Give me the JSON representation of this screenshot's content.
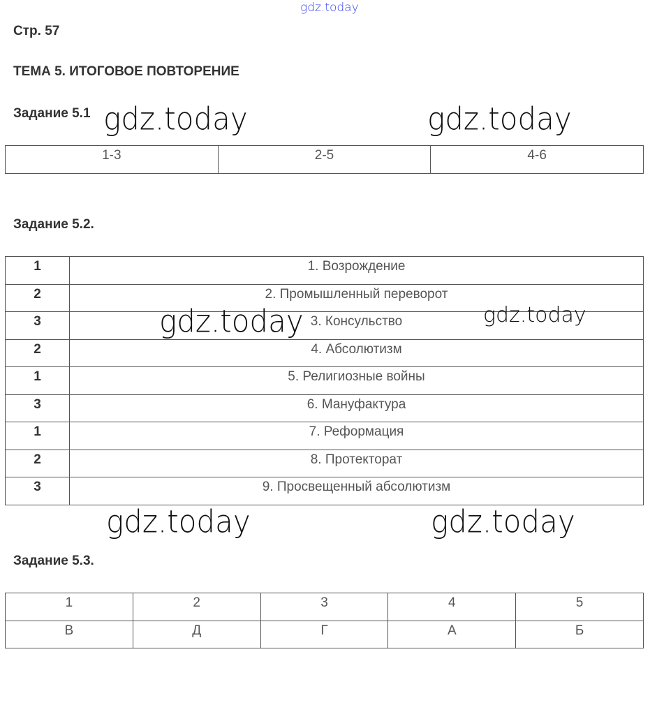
{
  "watermark": "gdz.today",
  "page_label": "Стр. 57",
  "topic_title": "ТЕМА 5. ИТОГОВОЕ ПОВТОРЕНИЕ",
  "task1": {
    "title": "Задание 5.1",
    "cells": [
      "1-3",
      "2-5",
      "4-6"
    ]
  },
  "task2": {
    "title": "Задание 5.2.",
    "rows": [
      {
        "num": "1",
        "text": "1. Возрождение"
      },
      {
        "num": "2",
        "text": "2. Промышленный переворот"
      },
      {
        "num": "3",
        "text": "3. Консульство"
      },
      {
        "num": "2",
        "text": "4. Абсолютизм"
      },
      {
        "num": "1",
        "text": "5. Религиозные войны"
      },
      {
        "num": "3",
        "text": "6. Мануфактура"
      },
      {
        "num": "1",
        "text": "7. Реформация"
      },
      {
        "num": "2",
        "text": "8. Протекторат"
      },
      {
        "num": "3",
        "text": "9. Просвещенный абсолютизм"
      }
    ]
  },
  "task3": {
    "title": "Задание 5.3.",
    "header": [
      "1",
      "2",
      "3",
      "4",
      "5"
    ],
    "answers": [
      "В",
      "Д",
      "Г",
      "А",
      "Б"
    ]
  },
  "colors": {
    "watermark_top": "#3344ee",
    "text": "#333333"
  }
}
